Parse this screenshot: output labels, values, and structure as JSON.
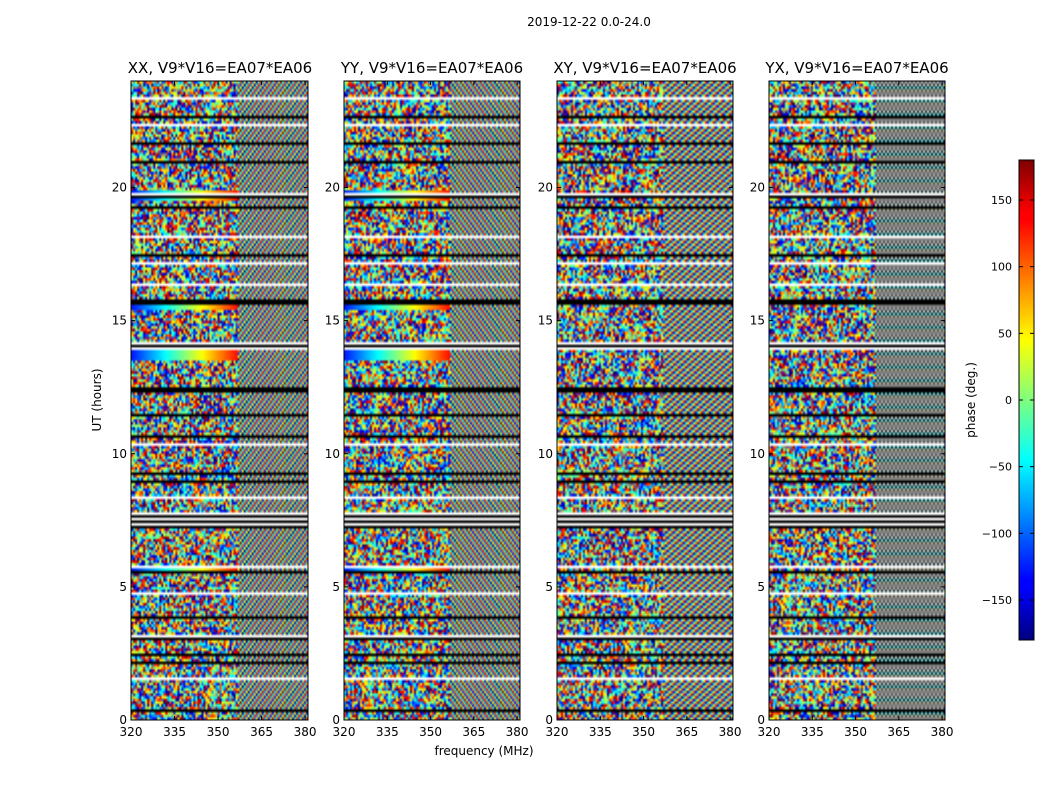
{
  "chart_data": {
    "type": "heatmap",
    "suptitle": "2019-12-22 0.0-24.0",
    "xlabel": "frequency (MHz)",
    "ylabel": "UT (hours)",
    "xlim": [
      320,
      381
    ],
    "ylim": [
      0,
      24
    ],
    "xticks": [
      "320",
      "335",
      "350",
      "365",
      "380"
    ],
    "xtick_values": [
      320,
      335,
      350,
      365,
      380
    ],
    "yticks": [
      "0",
      "5",
      "10",
      "15",
      "20"
    ],
    "ytick_values": [
      0,
      5,
      10,
      15,
      20
    ],
    "colormap": "jet",
    "colorbar": {
      "label": "phase (deg.)",
      "range": [
        -180,
        180
      ],
      "ticks": [
        "150",
        "100",
        "50",
        "0",
        "−50",
        "−100",
        "−150"
      ],
      "tick_values": [
        150,
        100,
        50,
        0,
        -50,
        -100,
        -150
      ]
    },
    "panels": [
      {
        "title": "XX, V9*V16=EA07*EA06",
        "pol": "XX"
      },
      {
        "title": "YY, V9*V16=EA07*EA06",
        "pol": "YY"
      },
      {
        "title": "XY, V9*V16=EA07*EA06",
        "pol": "XY"
      },
      {
        "title": "YX, V9*V16=EA07*EA06",
        "pol": "YX"
      }
    ],
    "flagged_gaps_hours": [
      [
        7.3,
        7.8
      ],
      [
        15.65,
        15.8
      ],
      [
        13.95,
        14.2
      ],
      [
        19.65,
        19.8
      ],
      [
        3.0,
        3.2
      ],
      [
        2.4,
        2.5
      ],
      [
        1.5,
        1.6
      ],
      [
        10.3,
        10.4
      ],
      [
        12.4,
        12.5
      ],
      [
        17.1,
        17.2
      ],
      [
        18.1,
        18.2
      ],
      [
        21.6,
        21.7
      ],
      [
        22.3,
        22.4
      ],
      [
        23.3,
        23.4
      ],
      [
        5.7,
        5.8
      ],
      [
        4.7,
        4.8
      ],
      [
        8.3,
        8.4
      ],
      [
        9.2,
        9.3
      ],
      [
        11.4,
        11.5
      ],
      [
        16.3,
        16.4
      ]
    ]
  }
}
